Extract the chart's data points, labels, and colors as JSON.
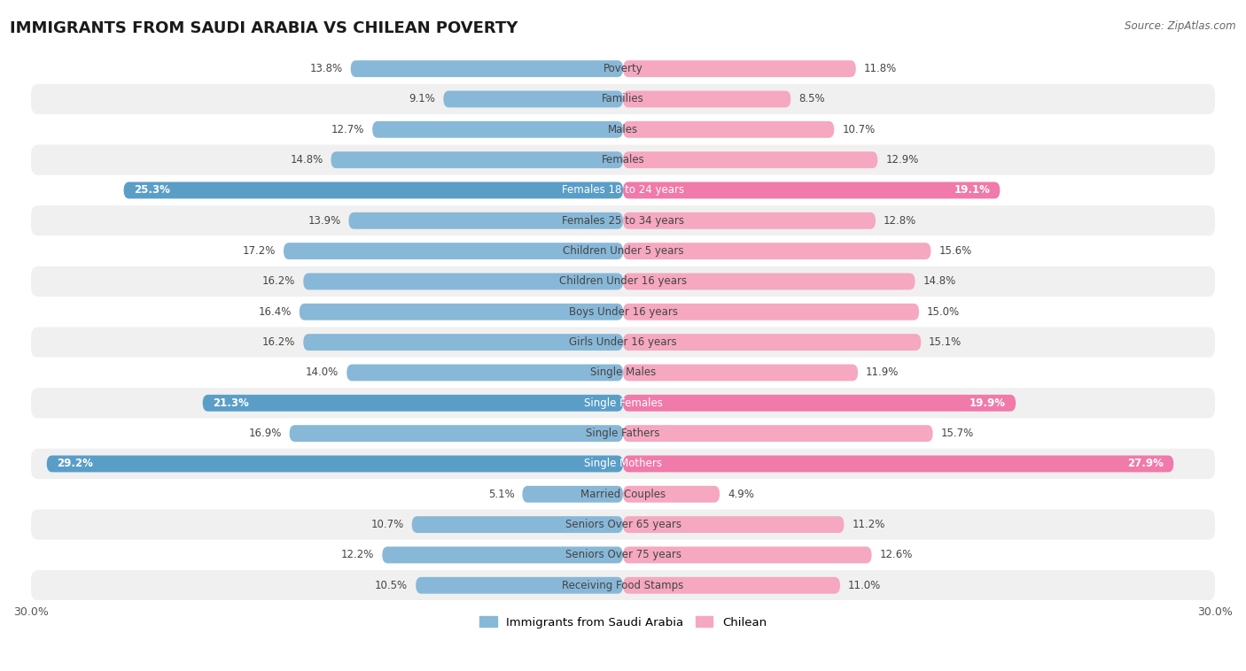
{
  "title": "IMMIGRANTS FROM SAUDI ARABIA VS CHILEAN POVERTY",
  "source": "Source: ZipAtlas.com",
  "categories": [
    "Poverty",
    "Families",
    "Males",
    "Females",
    "Females 18 to 24 years",
    "Females 25 to 34 years",
    "Children Under 5 years",
    "Children Under 16 years",
    "Boys Under 16 years",
    "Girls Under 16 years",
    "Single Males",
    "Single Females",
    "Single Fathers",
    "Single Mothers",
    "Married Couples",
    "Seniors Over 65 years",
    "Seniors Over 75 years",
    "Receiving Food Stamps"
  ],
  "saudi_values": [
    13.8,
    9.1,
    12.7,
    14.8,
    25.3,
    13.9,
    17.2,
    16.2,
    16.4,
    16.2,
    14.0,
    21.3,
    16.9,
    29.2,
    5.1,
    10.7,
    12.2,
    10.5
  ],
  "chilean_values": [
    11.8,
    8.5,
    10.7,
    12.9,
    19.1,
    12.8,
    15.6,
    14.8,
    15.0,
    15.1,
    11.9,
    19.9,
    15.7,
    27.9,
    4.9,
    11.2,
    12.6,
    11.0
  ],
  "saudi_color": "#88B8D8",
  "chilean_color": "#F5A8C0",
  "saudi_highlight_color": "#5A9EC8",
  "chilean_highlight_color": "#F07AAA",
  "highlight_rows": [
    4,
    11,
    13
  ],
  "xlim": 30.0,
  "bar_height": 0.55,
  "background_color": "#FFFFFF",
  "row_even_color": "#FFFFFF",
  "row_odd_color": "#F0F0F0",
  "legend_saudi": "Immigrants from Saudi Arabia",
  "legend_chilean": "Chilean",
  "title_fontsize": 13,
  "label_fontsize": 8.5,
  "source_fontsize": 8.5
}
